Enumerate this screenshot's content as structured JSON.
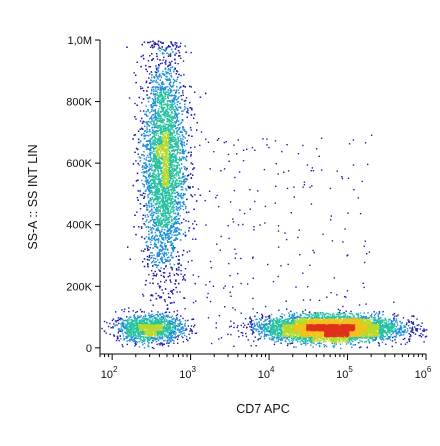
{
  "chart_data": {
    "type": "scatter",
    "subtype": "flow-cytometry-density-dot-plot",
    "title": "",
    "xlabel": "CD7 APC",
    "ylabel": "SS-A :: SS INT LIN",
    "x_scale": "log",
    "xlim": [
      70,
      1000000
    ],
    "ylim": [
      -20000,
      1000000
    ],
    "x_ticks": [
      {
        "value": 100,
        "base": "10",
        "exp": "2"
      },
      {
        "value": 1000,
        "base": "10",
        "exp": "3"
      },
      {
        "value": 10000,
        "base": "10",
        "exp": "4"
      },
      {
        "value": 100000,
        "base": "10",
        "exp": "5"
      },
      {
        "value": 1000000,
        "base": "10",
        "exp": "6"
      }
    ],
    "y_ticks": [
      {
        "value": 0,
        "label": "0"
      },
      {
        "value": 200000,
        "label": "200K"
      },
      {
        "value": 400000,
        "label": "400K"
      },
      {
        "value": 600000,
        "label": "600K"
      },
      {
        "value": 800000,
        "label": "800K"
      },
      {
        "value": 1000000,
        "label": "1,0M"
      }
    ],
    "grid": false,
    "legend": "none",
    "density_colors": [
      "#1a1aa8",
      "#1f8fd6",
      "#27c2a0",
      "#b8d92a",
      "#f2c21c",
      "#e0301e"
    ],
    "populations": [
      {
        "x_center": 450,
        "x_log_sd": 0.14,
        "y_center": 600000,
        "y_sd": 180000,
        "y_min": 40000,
        "y_max": 1000000,
        "points": 5200
      },
      {
        "x_center": 300,
        "x_log_sd": 0.22,
        "y_center": 65000,
        "y_sd": 22000,
        "y_min": 0,
        "y_max": 140000,
        "points": 1400
      },
      {
        "x_center": 60000,
        "x_log_sd": 0.42,
        "y_center": 65000,
        "y_sd": 20000,
        "y_min": 0,
        "y_max": 160000,
        "points": 5600
      }
    ]
  }
}
